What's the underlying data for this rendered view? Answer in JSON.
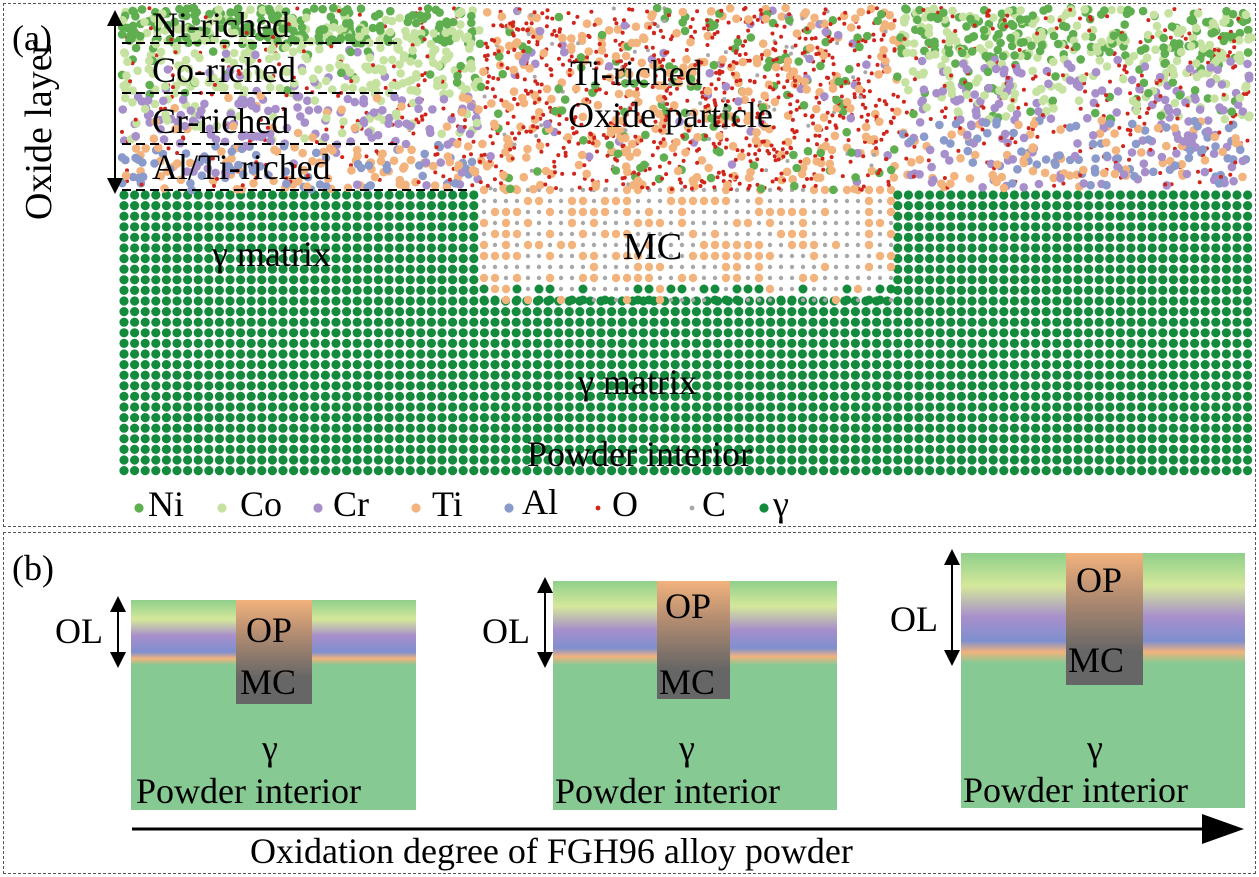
{
  "panel_a": {
    "label": "(a)",
    "side_label": "Oxide layer",
    "layers": [
      "Ni-riched",
      "Co-riched",
      "Cr-riched",
      "Al/Ti-riched"
    ],
    "ti_riched": "Ti-riched",
    "oxide_particle": "Oxide particle",
    "mc": "MC",
    "gamma_matrix_left": "γ matrix",
    "gamma_matrix_center": "γ matrix",
    "powder_interior": "Powder interior",
    "legend": [
      {
        "label": "Ni",
        "color": "#5fae4f"
      },
      {
        "label": "Co",
        "color": "#c6e2a0"
      },
      {
        "label": "Cr",
        "color": "#a78fcb"
      },
      {
        "label": "Ti",
        "color": "#f2b37d"
      },
      {
        "label": "Al",
        "color": "#8a9acb"
      },
      {
        "label": "O",
        "color": "#d0251b"
      },
      {
        "label": "C",
        "color": "#a8a8a8"
      },
      {
        "label": "γ",
        "color": "#138a3c"
      }
    ]
  },
  "panel_b": {
    "label": "(b)",
    "stages": [
      {
        "ol": "OL",
        "op": "OP",
        "mc": "MC",
        "gamma": "γ",
        "interior": "Powder interior"
      },
      {
        "ol": "OL",
        "op": "OP",
        "mc": "MC",
        "gamma": "γ",
        "interior": "Powder interior"
      },
      {
        "ol": "OL",
        "op": "OP",
        "mc": "MC",
        "gamma": "γ",
        "interior": "Powder interior"
      }
    ],
    "axis_label": "Oxidation degree of FGH96 alloy powder"
  }
}
